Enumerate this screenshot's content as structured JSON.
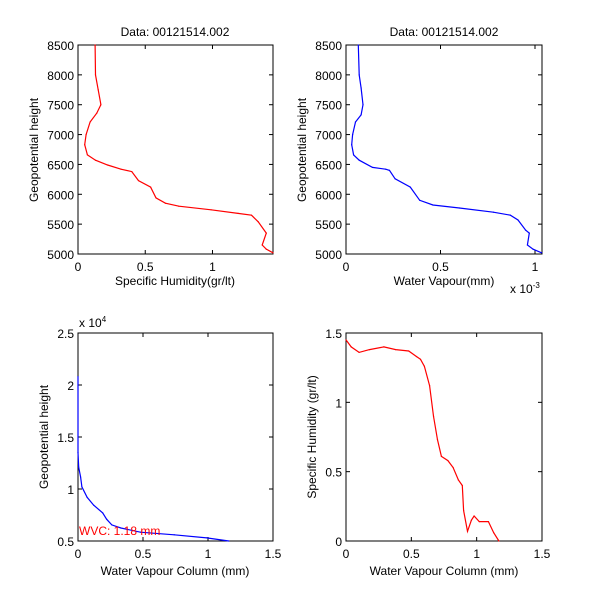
{
  "figure": {
    "colors": {
      "red": "#ff0000",
      "blue": "#0000ff",
      "axis": "#000000",
      "background": "#ffffff"
    }
  },
  "chart_data": [
    {
      "id": "p1",
      "type": "line",
      "title": "Data: 00121514.002",
      "xlabel": "Specific Humidity(gr/lt)",
      "ylabel": "Geopotential height",
      "xlim": [
        0,
        1.45
      ],
      "ylim": [
        5000,
        8500
      ],
      "xticks": [
        0,
        0.5,
        1
      ],
      "xtick_labels": [
        "0",
        "0.5",
        "1"
      ],
      "yticks": [
        5000,
        5500,
        6000,
        6500,
        7000,
        7500,
        8000,
        8500
      ],
      "ytick_labels": [
        "5000",
        "5500",
        "6000",
        "6500",
        "7000",
        "7500",
        "8000",
        "8500"
      ],
      "x_exponent_label": "",
      "y_exponent_label": "",
      "annotation": "",
      "grid": false,
      "color": "#ff0000",
      "series": [
        {
          "name": "specific humidity",
          "x": [
            0.127,
            0.13,
            0.15,
            0.17,
            0.14,
            0.09,
            0.06,
            0.05,
            0.07,
            0.13,
            0.22,
            0.32,
            0.4,
            0.45,
            0.54,
            0.58,
            0.65,
            0.75,
            0.99,
            1.19,
            1.29,
            1.34,
            1.4,
            1.37,
            1.4,
            1.45
          ],
          "y": [
            8500,
            8000,
            7750,
            7500,
            7360,
            7210,
            7000,
            6830,
            6660,
            6570,
            6490,
            6420,
            6380,
            6230,
            6120,
            5940,
            5850,
            5800,
            5740,
            5680,
            5650,
            5540,
            5350,
            5150,
            5080,
            5020
          ]
        }
      ]
    },
    {
      "id": "p2",
      "type": "line",
      "title": "Data: 00121514.002",
      "xlabel": "Water Vapour(mm)",
      "ylabel": "Geopotential height",
      "xlim": [
        0,
        1.037
      ],
      "ylim": [
        5000,
        8500
      ],
      "xticks": [
        0,
        0.5,
        1
      ],
      "xtick_labels": [
        "0",
        "0.5",
        "1"
      ],
      "yticks": [
        5000,
        5500,
        6000,
        6500,
        7000,
        7500,
        8000,
        8500
      ],
      "ytick_labels": [
        "5000",
        "5500",
        "6000",
        "6500",
        "7000",
        "7500",
        "8000",
        "8500"
      ],
      "x_exponent_label": "x 10",
      "x_exponent_power": "-3",
      "y_exponent_label": "",
      "annotation": "",
      "grid": false,
      "color": "#0000ff",
      "series": [
        {
          "name": "water vapour (x1e-3 mm)",
          "x": [
            0.065,
            0.07,
            0.08,
            0.09,
            0.08,
            0.05,
            0.035,
            0.03,
            0.04,
            0.07,
            0.14,
            0.21,
            0.23,
            0.26,
            0.34,
            0.39,
            0.46,
            0.6,
            0.78,
            0.87,
            0.91,
            0.95,
            0.97,
            0.96,
            0.99,
            1.035
          ],
          "y": [
            8500,
            8000,
            7780,
            7500,
            7330,
            7210,
            7000,
            6830,
            6660,
            6570,
            6450,
            6420,
            6400,
            6260,
            6120,
            5900,
            5820,
            5770,
            5700,
            5650,
            5570,
            5400,
            5350,
            5150,
            5080,
            5020
          ]
        }
      ]
    },
    {
      "id": "p3",
      "type": "line",
      "title": "",
      "xlabel": "Water Vapour Column (mm)",
      "ylabel": "Geopotential height",
      "xlim": [
        0,
        1.5
      ],
      "ylim": [
        5000,
        25000
      ],
      "xticks": [
        0,
        0.5,
        1,
        1.5
      ],
      "xtick_labels": [
        "0",
        "0.5",
        "1",
        "1.5"
      ],
      "yticks": [
        5000,
        10000,
        15000,
        20000,
        25000
      ],
      "ytick_labels": [
        "0.5",
        "1",
        "1.5",
        "2",
        "2.5"
      ],
      "x_exponent_label": "",
      "y_exponent_label": "x 10",
      "y_exponent_power": "4",
      "annotation": "WVC: 1.18 mm",
      "annotation_color": "#ff0000",
      "grid": false,
      "color": "#0000ff",
      "series": [
        {
          "name": "water vapour column",
          "x": [
            0,
            0,
            0.005,
            0.02,
            0.03,
            0.07,
            0.12,
            0.19,
            0.22,
            0.26,
            0.33,
            0.48,
            0.74,
            0.99,
            1.16
          ],
          "y": [
            20800,
            13500,
            12100,
            11150,
            10200,
            9200,
            8450,
            7700,
            7100,
            6550,
            6250,
            5850,
            5600,
            5300,
            5000
          ]
        }
      ]
    },
    {
      "id": "p4",
      "type": "line",
      "title": "",
      "xlabel": "Water Vapour Column (mm)",
      "ylabel": "Specific Humidity (gr/lt)",
      "xlim": [
        0,
        1.5
      ],
      "ylim": [
        0,
        1.5
      ],
      "xticks": [
        0,
        0.5,
        1,
        1.5
      ],
      "xtick_labels": [
        "0",
        "0.5",
        "1",
        "1.5"
      ],
      "yticks": [
        0,
        0.5,
        1,
        1.5
      ],
      "ytick_labels": [
        "0",
        "0.5",
        "1",
        "1.5"
      ],
      "x_exponent_label": "",
      "y_exponent_label": "",
      "annotation": "",
      "grid": false,
      "color": "#ff0000",
      "series": [
        {
          "name": "specific humidity vs column",
          "x": [
            0,
            0.04,
            0.1,
            0.18,
            0.29,
            0.38,
            0.48,
            0.54,
            0.57,
            0.6,
            0.64,
            0.67,
            0.7,
            0.73,
            0.78,
            0.82,
            0.86,
            0.89,
            0.9,
            0.93,
            0.96,
            0.98,
            1.02,
            1.09,
            1.13,
            1.17
          ],
          "y": [
            1.45,
            1.4,
            1.36,
            1.38,
            1.4,
            1.38,
            1.37,
            1.33,
            1.31,
            1.26,
            1.12,
            0.9,
            0.73,
            0.61,
            0.58,
            0.53,
            0.44,
            0.4,
            0.22,
            0.07,
            0.15,
            0.18,
            0.14,
            0.14,
            0.06,
            0.0
          ]
        }
      ]
    }
  ]
}
